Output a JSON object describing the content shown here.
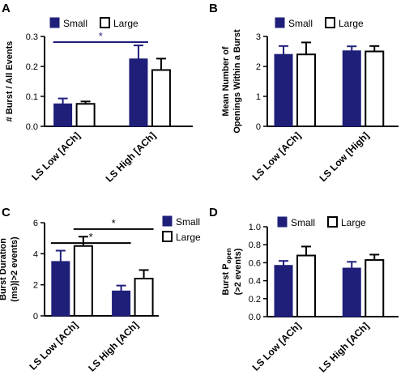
{
  "chart_data": [
    {
      "panel": "A",
      "type": "bar",
      "ylabel": "# Burst / All Events",
      "ylim": [
        0,
        0.3
      ],
      "yticks": [
        "0.0",
        "0.1",
        "0.2",
        "0.3"
      ],
      "categories": [
        "LS Low [ACh]",
        "LS High [ACh]"
      ],
      "legend_placement": "top-left",
      "series": [
        {
          "name": "Small",
          "color": "#1f1f7a",
          "filled": true,
          "values": [
            0.075,
            0.225
          ],
          "errors": [
            0.018,
            0.045
          ]
        },
        {
          "name": "Large",
          "color": "#000000",
          "filled": false,
          "values": [
            0.075,
            0.188
          ],
          "errors": [
            0.008,
            0.038
          ]
        }
      ],
      "significance": [
        {
          "label": "*",
          "color": "#1f1f7a",
          "from": "LS Low [ACh] Small",
          "to": "LS High [ACh] Small"
        }
      ]
    },
    {
      "panel": "B",
      "type": "bar",
      "ylabel": "Mean Number of Openings Within a Burst",
      "ylabel_lines": [
        "Mean Number of",
        "Openings Within a Burst"
      ],
      "ylim": [
        0,
        3
      ],
      "yticks": [
        "0",
        "1",
        "2",
        "3"
      ],
      "categories": [
        "LS Low [ACh]",
        "LS Low [High]"
      ],
      "legend_placement": "top-left",
      "series": [
        {
          "name": "Small",
          "color": "#1f1f7a",
          "filled": true,
          "values": [
            2.4,
            2.52
          ],
          "errors": [
            0.28,
            0.15
          ]
        },
        {
          "name": "Large",
          "color": "#000000",
          "filled": false,
          "values": [
            2.4,
            2.5
          ],
          "errors": [
            0.4,
            0.18
          ]
        }
      ],
      "significance": []
    },
    {
      "panel": "C",
      "type": "bar",
      "ylabel": "Burst Duration (ms)|>2 events)",
      "ylabel_lines": [
        "Burst Duration",
        "(ms)|>2 events)"
      ],
      "ylim": [
        0,
        6
      ],
      "yticks": [
        "0",
        "2",
        "4",
        "6"
      ],
      "categories": [
        "LS Low [ACh]",
        "LS High [ACh]"
      ],
      "legend_placement": "right",
      "series": [
        {
          "name": "Small",
          "color": "#1f1f7a",
          "filled": true,
          "values": [
            3.5,
            1.6
          ],
          "errors": [
            0.7,
            0.35
          ]
        },
        {
          "name": "Large",
          "color": "#000000",
          "filled": false,
          "values": [
            4.5,
            2.4
          ],
          "errors": [
            0.6,
            0.55
          ]
        }
      ],
      "significance": [
        {
          "label": "*",
          "color": "#000000",
          "from": "LS Low [ACh] Small",
          "to": "LS High [ACh] Small"
        },
        {
          "label": "*",
          "color": "#000000",
          "from": "LS Low [ACh] Large",
          "to": "LS High [ACh] Large"
        }
      ]
    },
    {
      "panel": "D",
      "type": "bar",
      "ylabel": "Burst Popen (>2 events)",
      "ylabel_main": "Burst P",
      "ylabel_sub": "open",
      "ylabel_line2": "(>2 events)",
      "ylim": [
        0,
        1.0
      ],
      "yticks": [
        "0.0",
        "0.2",
        "0.4",
        "0.6",
        "0.8",
        "1.0"
      ],
      "categories": [
        "LS Low [ACh]",
        "LS High [ACh]"
      ],
      "legend_placement": "top-left",
      "series": [
        {
          "name": "Small",
          "color": "#1f1f7a",
          "filled": true,
          "values": [
            0.57,
            0.54
          ],
          "errors": [
            0.05,
            0.07
          ]
        },
        {
          "name": "Large",
          "color": "#000000",
          "filled": false,
          "values": [
            0.68,
            0.63
          ],
          "errors": [
            0.1,
            0.06
          ]
        }
      ],
      "significance": []
    }
  ]
}
